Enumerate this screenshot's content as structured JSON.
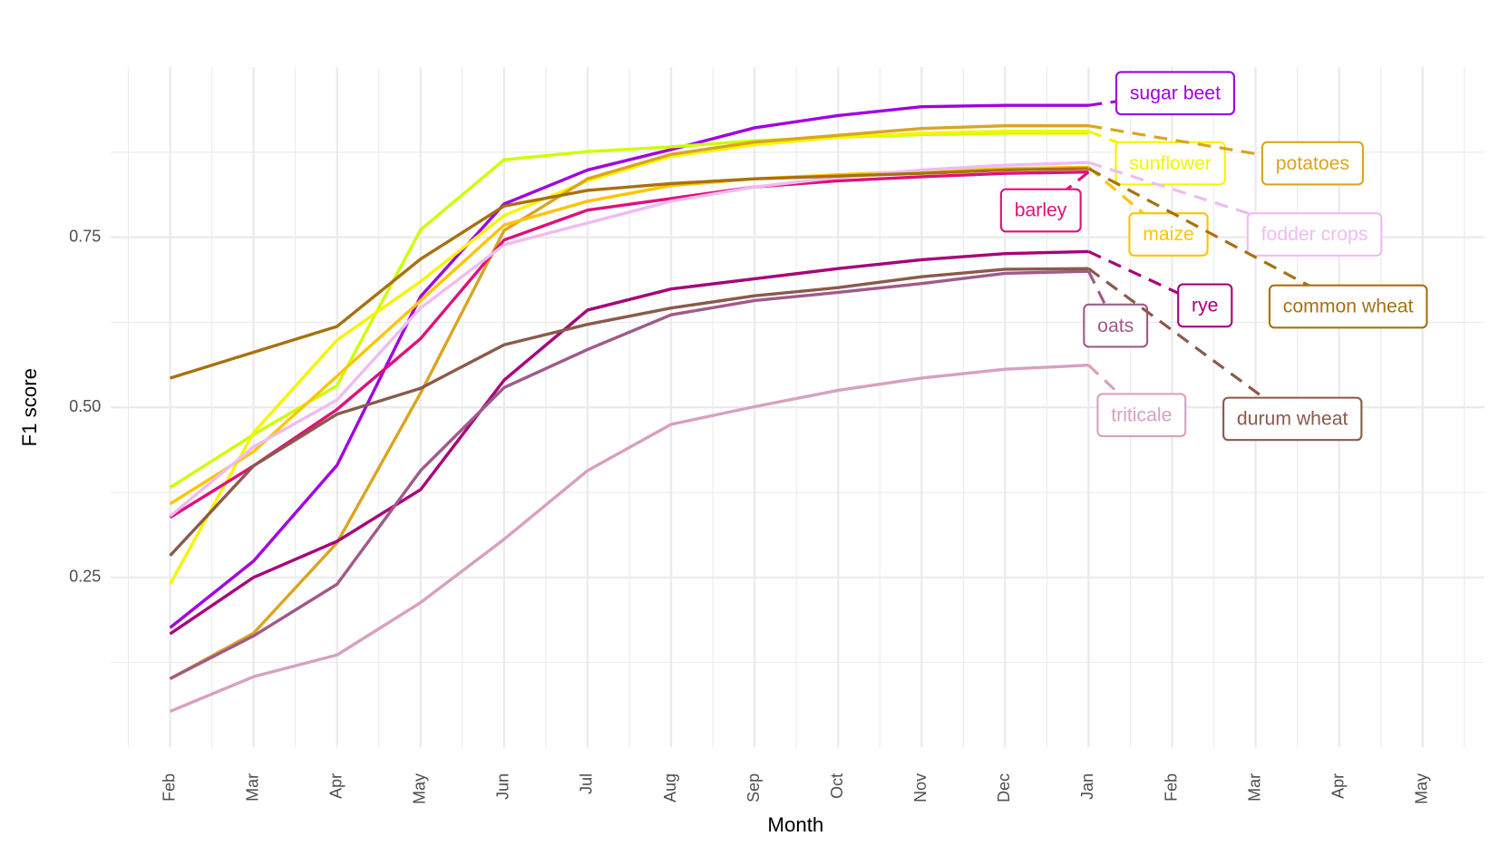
{
  "chart_data": {
    "type": "line",
    "x_label": "Month",
    "y_label": "F1 score",
    "categories": [
      "Feb",
      "Mar",
      "Apr",
      "May",
      "Jun",
      "Jul",
      "Aug",
      "Sep",
      "Oct",
      "Nov",
      "Dec",
      "Jan",
      "Feb",
      "Mar",
      "Apr",
      "May"
    ],
    "ylim": [
      0.0,
      1.0
    ],
    "yticks": [
      0.25,
      {
        "value": 0.5,
        "label": "0.50"
      },
      0.75
    ],
    "grid": true,
    "series": [
      {
        "name": "sugar beet",
        "color": "#a000e0",
        "values": [
          0.176,
          0.274,
          0.415,
          0.663,
          0.799,
          0.849,
          0.879,
          0.911,
          0.929,
          0.942,
          0.944,
          0.944,
          null,
          null,
          null,
          null
        ]
      },
      {
        "color": "#ccff00",
        "values": [
          0.382,
          0.46,
          0.532,
          0.761,
          0.864,
          0.876,
          0.883,
          0.892,
          0.897,
          0.901,
          0.903,
          0.903,
          null,
          null,
          null,
          null
        ]
      },
      {
        "name": "sunflower",
        "color": "#f5f500",
        "values": [
          0.24,
          0.463,
          0.599,
          0.685,
          0.782,
          0.833,
          0.869,
          0.886,
          0.897,
          0.903,
          0.906,
          0.906,
          null,
          null,
          null,
          null
        ]
      },
      {
        "name": "potatoes",
        "color": "#daa520",
        "values": [
          0.101,
          0.168,
          0.301,
          0.521,
          0.76,
          0.836,
          0.872,
          0.89,
          0.9,
          0.91,
          0.914,
          0.914,
          null,
          null,
          null,
          null
        ]
      },
      {
        "name": "barley",
        "color": "#e0107a",
        "values": [
          0.338,
          0.414,
          0.497,
          0.601,
          0.746,
          0.79,
          0.807,
          0.824,
          0.833,
          0.839,
          0.844,
          0.846,
          null,
          null,
          null,
          null
        ]
      },
      {
        "name": "maize",
        "color": "#ffc400",
        "values": [
          0.358,
          0.435,
          0.546,
          0.657,
          0.768,
          0.803,
          0.826,
          0.836,
          0.842,
          0.847,
          0.851,
          0.853,
          null,
          null,
          null,
          null
        ]
      },
      {
        "name": "fodder crops",
        "color": "#eebcf2",
        "values": [
          0.34,
          0.442,
          0.511,
          0.646,
          0.739,
          0.771,
          0.803,
          0.824,
          0.838,
          0.849,
          0.856,
          0.86,
          null,
          null,
          null,
          null
        ]
      },
      {
        "name": "rye",
        "color": "#a8007a",
        "values": [
          0.167,
          0.25,
          0.303,
          0.379,
          0.54,
          0.643,
          0.674,
          0.689,
          0.704,
          0.717,
          0.726,
          0.729,
          null,
          null,
          null,
          null
        ]
      },
      {
        "name": "common wheat",
        "color": "#a8700e",
        "values": [
          0.543,
          0.581,
          0.619,
          0.718,
          0.796,
          0.819,
          0.829,
          0.836,
          0.84,
          0.844,
          0.849,
          0.851,
          null,
          null,
          null,
          null
        ]
      },
      {
        "name": "oats",
        "color": "#a05a8a",
        "values": [
          0.101,
          0.164,
          0.24,
          0.407,
          0.529,
          0.585,
          0.636,
          0.657,
          0.669,
          0.682,
          0.697,
          0.7,
          null,
          null,
          null,
          null
        ]
      },
      {
        "name": "triticale",
        "color": "#d8a0c0",
        "values": [
          0.053,
          0.104,
          0.136,
          0.213,
          0.306,
          0.407,
          0.475,
          0.501,
          0.525,
          0.543,
          0.556,
          0.562,
          null,
          null,
          null,
          null
        ]
      },
      {
        "name": "durum wheat",
        "color": "#8b5a4a",
        "values": [
          0.282,
          0.414,
          0.49,
          0.528,
          0.592,
          0.622,
          0.646,
          0.664,
          0.676,
          0.692,
          0.703,
          0.704,
          null,
          null,
          null,
          null
        ]
      }
    ]
  }
}
